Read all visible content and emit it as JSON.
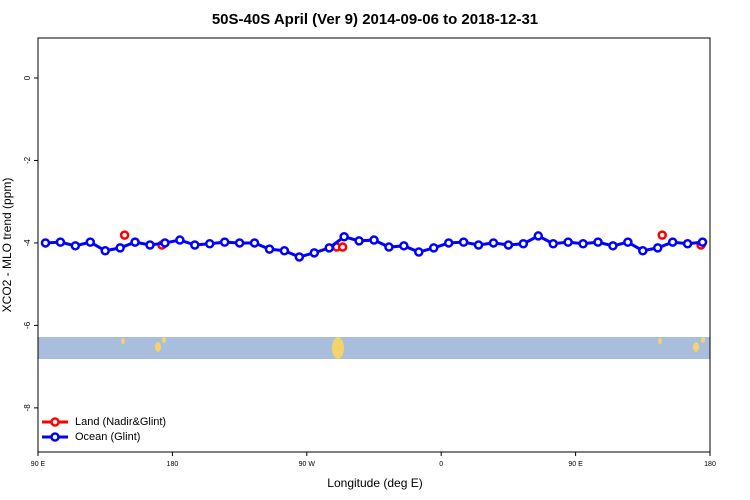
{
  "chart_data": {
    "type": "line",
    "title": "50S-40S April (Ver 9)   2014-09-06 to 2018-12-31",
    "x_label": "Longitude (deg E)",
    "y_label": "XCO2 - MLO trend (ppm)",
    "xlim": [
      90,
      540
    ],
    "ylim": [
      -9.07,
      0.97
    ],
    "xticks": [
      {
        "value": 90,
        "label": "90 E"
      },
      180,
      {
        "value": 270,
        "label": "90 W"
      },
      {
        "value": 360,
        "label": "0"
      },
      {
        "value": 450,
        "label": "90 E"
      },
      {
        "value": 540,
        "label": "180"
      }
    ],
    "yticks": [
      0,
      -2,
      -4,
      -6,
      -8
    ],
    "legend": "bottom-left",
    "series": [
      {
        "name": "Land (Nadir&Glint)",
        "color": "#ff0000",
        "connect": false,
        "x": [
          148,
          173,
          290,
          294,
          508,
          534
        ],
        "values": [
          -3.81,
          -4.05,
          -4.1,
          -4.1,
          -3.81,
          -4.05
        ]
      },
      {
        "name": "Ocean (Glint)",
        "color": "#0000ff",
        "connect": true,
        "x": [
          95,
          105,
          115,
          125,
          135,
          145,
          155,
          165,
          175,
          185,
          195,
          205,
          215,
          225,
          235,
          245,
          255,
          265,
          275,
          285,
          295,
          305,
          315,
          325,
          335,
          345,
          355,
          365,
          375,
          385,
          395,
          405,
          415,
          425,
          435,
          445,
          455,
          465,
          475,
          485,
          495,
          505,
          515,
          525,
          535
        ],
        "values": [
          -4.0,
          -3.98,
          -4.07,
          -3.98,
          -4.19,
          -4.12,
          -3.98,
          -4.05,
          -4.0,
          -3.93,
          -4.05,
          -4.02,
          -3.98,
          -4.0,
          -4.0,
          -4.15,
          -4.19,
          -4.34,
          -4.24,
          -4.12,
          -3.85,
          -3.95,
          -3.93,
          -4.1,
          -4.07,
          -4.22,
          -4.12,
          -4.0,
          -3.98,
          -4.05,
          -4.0,
          -4.05,
          -4.02,
          -3.83,
          -4.02,
          -3.98,
          -4.02,
          -3.98,
          -4.07,
          -3.98,
          -4.19,
          -4.12,
          -3.98,
          -4.02,
          -3.98
        ]
      }
    ]
  }
}
